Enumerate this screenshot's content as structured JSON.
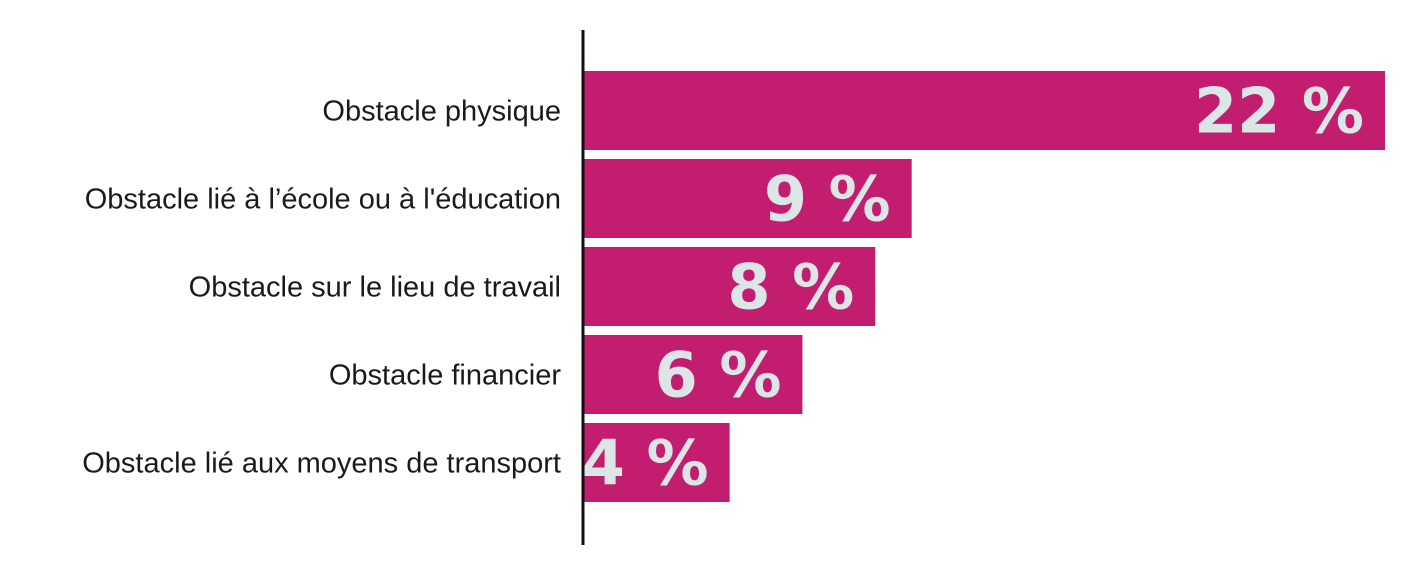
{
  "chart_data": {
    "type": "bar",
    "orientation": "horizontal",
    "categories": [
      "Obstacle physique",
      "Obstacle lié à l’école ou à l'éducation",
      "Obstacle sur le lieu de travail",
      "Obstacle financier",
      "Obstacle lié aux moyens de transport"
    ],
    "values": [
      22,
      9,
      8,
      6,
      4
    ],
    "value_labels": [
      "22 %",
      "9 %",
      "8 %",
      "6 %",
      "4 %"
    ],
    "unit": "%",
    "xlim": [
      0,
      22
    ],
    "grid": false,
    "legend": "none",
    "title": "",
    "xlabel": "",
    "ylabel": ""
  },
  "colors": {
    "bar": "#c21d6e",
    "value_text": "#dde6e6",
    "axis": "#111111",
    "category_text": "#1a1a1a"
  }
}
